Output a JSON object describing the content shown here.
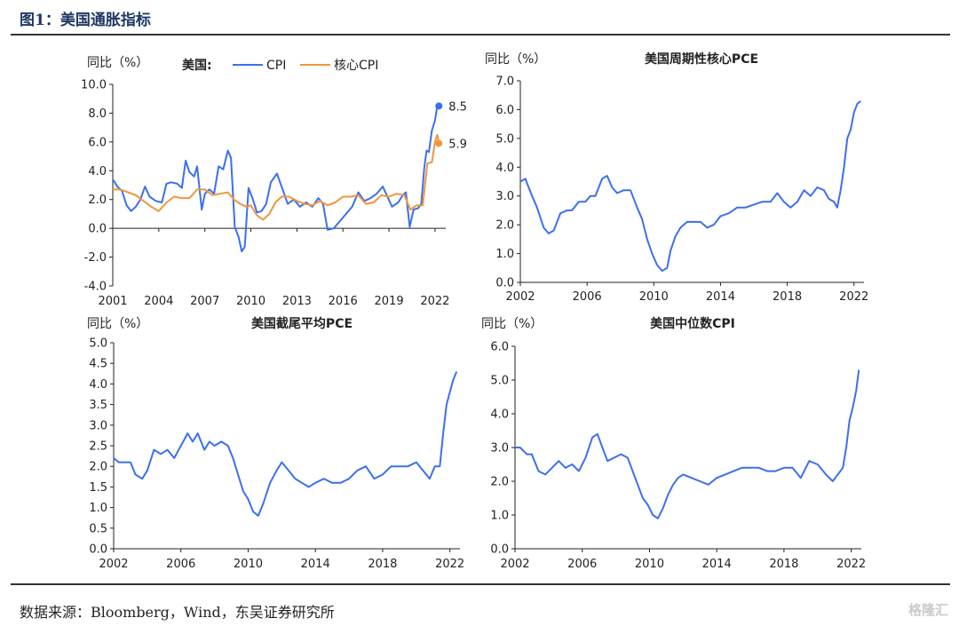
{
  "figure": {
    "title": "图1：美国通胀指标"
  },
  "source": "数据来源：Bloomberg，Wind，东吴证券研究所",
  "watermark": "格隆汇",
  "colors": {
    "cpi": "#3b6ff0",
    "core": "#f0963c",
    "axis": "#222222"
  },
  "chart_data": [
    {
      "type": "line",
      "title": "",
      "ylabel": "同比（%）",
      "legend_prefix": "美国:",
      "legend_position": "top",
      "x_ticks": [
        "2001",
        "2004",
        "2007",
        "2010",
        "2013",
        "2016",
        "2019",
        "2022"
      ],
      "xlim": [
        2001,
        2022.7
      ],
      "ylim": [
        -4,
        10
      ],
      "y_ticks": [
        "-4.0",
        "-2.0",
        "0.0",
        "2.0",
        "4.0",
        "6.0",
        "8.0",
        "10.0"
      ],
      "grid": false,
      "series": [
        {
          "name": "CPI",
          "color": "#3b6ff0",
          "end_label": "8.5",
          "x": [
            2001,
            2001.3,
            2001.6,
            2001.9,
            2002.2,
            2002.5,
            2002.8,
            2003.1,
            2003.4,
            2003.8,
            2004.2,
            2004.5,
            2004.8,
            2005.2,
            2005.5,
            2005.75,
            2006.0,
            2006.3,
            2006.5,
            2006.8,
            2007.0,
            2007.3,
            2007.6,
            2007.9,
            2008.2,
            2008.5,
            2008.7,
            2008.95,
            2009.2,
            2009.4,
            2009.6,
            2009.85,
            2010.1,
            2010.4,
            2010.7,
            2011.0,
            2011.3,
            2011.7,
            2012.0,
            2012.4,
            2012.8,
            2013.2,
            2013.6,
            2014.0,
            2014.4,
            2014.7,
            2015.0,
            2015.4,
            2015.8,
            2016.2,
            2016.6,
            2017.0,
            2017.4,
            2017.8,
            2018.2,
            2018.6,
            2018.9,
            2019.2,
            2019.6,
            2019.9,
            2020.1,
            2020.35,
            2020.6,
            2020.9,
            2021.1,
            2021.3,
            2021.45,
            2021.6,
            2021.8,
            2022.0,
            2022.15,
            2022.25
          ],
          "values": [
            3.4,
            2.9,
            2.6,
            1.6,
            1.2,
            1.5,
            2.0,
            2.9,
            2.2,
            1.9,
            1.8,
            3.1,
            3.2,
            3.1,
            2.8,
            4.7,
            3.9,
            3.6,
            4.3,
            1.3,
            2.4,
            2.7,
            2.4,
            4.3,
            4.1,
            5.4,
            4.9,
            0.1,
            -0.6,
            -1.6,
            -1.3,
            2.8,
            2.1,
            1.1,
            1.2,
            1.7,
            3.2,
            3.8,
            2.9,
            1.7,
            2.0,
            1.5,
            1.8,
            1.5,
            2.1,
            1.7,
            -0.1,
            0.0,
            0.5,
            1.0,
            1.5,
            2.5,
            1.9,
            2.1,
            2.4,
            2.9,
            2.2,
            1.5,
            1.8,
            2.3,
            2.5,
            0.1,
            1.3,
            1.4,
            1.7,
            4.2,
            5.4,
            5.3,
            6.8,
            7.5,
            8.5,
            8.5
          ]
        },
        {
          "name": "核心CPI",
          "color": "#f0963c",
          "end_label": "5.9",
          "x": [
            2001,
            2001.5,
            2002.0,
            2002.5,
            2003.0,
            2003.5,
            2004.0,
            2004.5,
            2005.0,
            2005.5,
            2006.0,
            2006.5,
            2007.0,
            2007.5,
            2008.0,
            2008.5,
            2008.9,
            2009.3,
            2009.7,
            2010.0,
            2010.4,
            2010.8,
            2011.2,
            2011.6,
            2012.0,
            2012.5,
            2013.0,
            2013.5,
            2014.0,
            2014.5,
            2015.0,
            2015.5,
            2016.0,
            2016.5,
            2017.0,
            2017.5,
            2018.0,
            2018.5,
            2019.0,
            2019.5,
            2020.0,
            2020.4,
            2020.8,
            2021.2,
            2021.5,
            2021.8,
            2022.0,
            2022.15,
            2022.25
          ],
          "values": [
            2.7,
            2.7,
            2.5,
            2.3,
            1.9,
            1.5,
            1.2,
            1.8,
            2.2,
            2.1,
            2.1,
            2.7,
            2.7,
            2.3,
            2.4,
            2.5,
            2.0,
            1.7,
            1.5,
            1.6,
            0.9,
            0.6,
            1.0,
            1.8,
            2.2,
            2.2,
            1.9,
            1.7,
            1.6,
            1.9,
            1.6,
            1.8,
            2.2,
            2.2,
            2.3,
            1.7,
            1.8,
            2.3,
            2.2,
            2.4,
            2.3,
            1.3,
            1.6,
            1.6,
            4.5,
            4.6,
            6.0,
            6.5,
            5.9
          ]
        }
      ]
    },
    {
      "type": "line",
      "title": "美国周期性核心PCE",
      "ylabel": "同比（%）",
      "x_ticks": [
        "2002",
        "2006",
        "2010",
        "2014",
        "2018",
        "2022"
      ],
      "xlim": [
        2002,
        2022.6
      ],
      "ylim": [
        0,
        7
      ],
      "y_ticks": [
        "0.0",
        "1.0",
        "2.0",
        "3.0",
        "4.0",
        "5.0",
        "6.0",
        "7.0"
      ],
      "grid": false,
      "series": [
        {
          "name": "",
          "color": "#3b6ff0",
          "x": [
            2002,
            2002.3,
            2002.7,
            2003.0,
            2003.4,
            2003.7,
            2004.0,
            2004.4,
            2004.8,
            2005.1,
            2005.5,
            2005.9,
            2006.2,
            2006.5,
            2006.9,
            2007.2,
            2007.5,
            2007.8,
            2008.2,
            2008.6,
            2009.0,
            2009.3,
            2009.6,
            2009.9,
            2010.2,
            2010.5,
            2010.8,
            2011.0,
            2011.3,
            2011.6,
            2012.0,
            2012.4,
            2012.8,
            2013.2,
            2013.6,
            2014.0,
            2014.5,
            2015.0,
            2015.5,
            2016.0,
            2016.5,
            2017.0,
            2017.4,
            2017.8,
            2018.2,
            2018.6,
            2019.0,
            2019.4,
            2019.8,
            2020.2,
            2020.5,
            2020.8,
            2021.0,
            2021.2,
            2021.4,
            2021.6,
            2021.8,
            2022.0,
            2022.2,
            2022.4
          ],
          "values": [
            3.5,
            3.6,
            3.0,
            2.6,
            1.9,
            1.7,
            1.8,
            2.4,
            2.5,
            2.5,
            2.8,
            2.8,
            3.0,
            3.0,
            3.6,
            3.7,
            3.3,
            3.1,
            3.2,
            3.2,
            2.6,
            2.2,
            1.5,
            1.0,
            0.6,
            0.4,
            0.5,
            1.1,
            1.6,
            1.9,
            2.1,
            2.1,
            2.1,
            1.9,
            2.0,
            2.3,
            2.4,
            2.6,
            2.6,
            2.7,
            2.8,
            2.8,
            3.1,
            2.8,
            2.6,
            2.8,
            3.2,
            3.0,
            3.3,
            3.2,
            2.9,
            2.8,
            2.6,
            3.2,
            4.0,
            5.0,
            5.3,
            5.9,
            6.2,
            6.3
          ]
        }
      ]
    },
    {
      "type": "line",
      "title": "美国截尾平均PCE",
      "ylabel": "同比（%）",
      "x_ticks": [
        "2002",
        "2006",
        "2010",
        "2014",
        "2018",
        "2022"
      ],
      "xlim": [
        2002,
        2022.6
      ],
      "ylim": [
        0,
        5
      ],
      "y_ticks": [
        "0.0",
        "0.5",
        "1.0",
        "1.5",
        "2.0",
        "2.5",
        "3.0",
        "3.5",
        "4.0",
        "4.5",
        "5.0"
      ],
      "grid": false,
      "series": [
        {
          "name": "",
          "color": "#3b6ff0",
          "x": [
            2002,
            2002.3,
            2002.7,
            2003.0,
            2003.3,
            2003.7,
            2004.0,
            2004.4,
            2004.8,
            2005.2,
            2005.6,
            2006.0,
            2006.4,
            2006.7,
            2007.0,
            2007.4,
            2007.7,
            2008.0,
            2008.4,
            2008.8,
            2009.1,
            2009.4,
            2009.7,
            2010.0,
            2010.3,
            2010.6,
            2010.9,
            2011.3,
            2011.7,
            2012.0,
            2012.4,
            2012.8,
            2013.2,
            2013.6,
            2014.0,
            2014.5,
            2015.0,
            2015.5,
            2016.0,
            2016.5,
            2017.0,
            2017.5,
            2018.0,
            2018.5,
            2019.0,
            2019.5,
            2020.0,
            2020.4,
            2020.8,
            2021.1,
            2021.4,
            2021.6,
            2021.8,
            2022.0,
            2022.2,
            2022.4
          ],
          "values": [
            2.2,
            2.1,
            2.1,
            2.1,
            1.8,
            1.7,
            1.9,
            2.4,
            2.3,
            2.4,
            2.2,
            2.5,
            2.8,
            2.6,
            2.8,
            2.4,
            2.6,
            2.5,
            2.6,
            2.5,
            2.2,
            1.8,
            1.4,
            1.2,
            0.9,
            0.8,
            1.1,
            1.6,
            1.9,
            2.1,
            1.9,
            1.7,
            1.6,
            1.5,
            1.6,
            1.7,
            1.6,
            1.6,
            1.7,
            1.9,
            2.0,
            1.7,
            1.8,
            2.0,
            2.0,
            2.0,
            2.1,
            1.9,
            1.7,
            2.0,
            2.0,
            2.8,
            3.5,
            3.8,
            4.1,
            4.3
          ]
        }
      ]
    },
    {
      "type": "line",
      "title": "美国中位数CPI",
      "ylabel": "同比（%）",
      "x_ticks": [
        "2002",
        "2006",
        "2010",
        "2014",
        "2018",
        "2022"
      ],
      "xlim": [
        2002,
        2022.6
      ],
      "ylim": [
        0,
        6
      ],
      "y_ticks": [
        "0.0",
        "1.0",
        "2.0",
        "3.0",
        "4.0",
        "5.0",
        "6.0"
      ],
      "grid": false,
      "series": [
        {
          "name": "",
          "color": "#3b6ff0",
          "x": [
            2002,
            2002.3,
            2002.7,
            2003.0,
            2003.4,
            2003.8,
            2004.2,
            2004.6,
            2005.0,
            2005.4,
            2005.8,
            2006.2,
            2006.6,
            2006.9,
            2007.2,
            2007.5,
            2007.9,
            2008.3,
            2008.7,
            2009.0,
            2009.3,
            2009.6,
            2009.9,
            2010.2,
            2010.5,
            2010.8,
            2011.1,
            2011.4,
            2011.7,
            2012.0,
            2012.5,
            2013.0,
            2013.5,
            2014.0,
            2014.5,
            2015.0,
            2015.5,
            2016.0,
            2016.5,
            2017.0,
            2017.5,
            2018.0,
            2018.5,
            2019.0,
            2019.5,
            2020.0,
            2020.5,
            2020.9,
            2021.2,
            2021.5,
            2021.7,
            2021.9,
            2022.1,
            2022.3,
            2022.45
          ],
          "values": [
            3.0,
            3.0,
            2.8,
            2.8,
            2.3,
            2.2,
            2.4,
            2.6,
            2.4,
            2.5,
            2.3,
            2.7,
            3.3,
            3.4,
            3.0,
            2.6,
            2.7,
            2.8,
            2.7,
            2.3,
            1.9,
            1.5,
            1.3,
            1.0,
            0.9,
            1.2,
            1.6,
            1.9,
            2.1,
            2.2,
            2.1,
            2.0,
            1.9,
            2.1,
            2.2,
            2.3,
            2.4,
            2.4,
            2.4,
            2.3,
            2.3,
            2.4,
            2.4,
            2.1,
            2.6,
            2.5,
            2.2,
            2.0,
            2.2,
            2.4,
            3.0,
            3.8,
            4.2,
            4.7,
            5.3
          ]
        }
      ]
    }
  ]
}
